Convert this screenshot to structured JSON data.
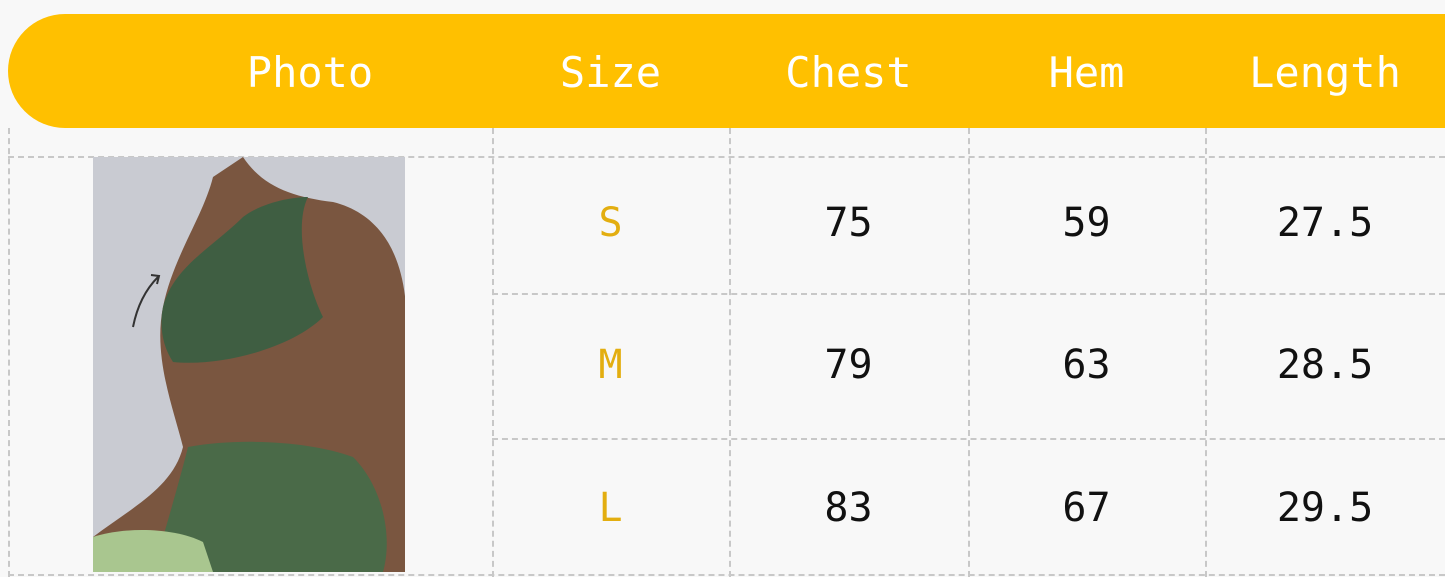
{
  "colors": {
    "header_bg": "#FFC000",
    "header_text": "#FFFFFF",
    "size_text": "#E3AE10",
    "value_text": "#111111",
    "grid": "#C8C8C8"
  },
  "table": {
    "headers": [
      "Photo",
      "Size",
      "Chest",
      "Hem",
      "Length"
    ],
    "rows": [
      {
        "size": "S",
        "chest": "75",
        "hem": "59",
        "length": "27.5"
      },
      {
        "size": "M",
        "chest": "79",
        "hem": "63",
        "length": "28.5"
      },
      {
        "size": "L",
        "chest": "83",
        "hem": "67",
        "length": "29.5"
      }
    ]
  },
  "photo": {
    "icon": "model-wearing-green-sports-bra-and-leggings"
  }
}
